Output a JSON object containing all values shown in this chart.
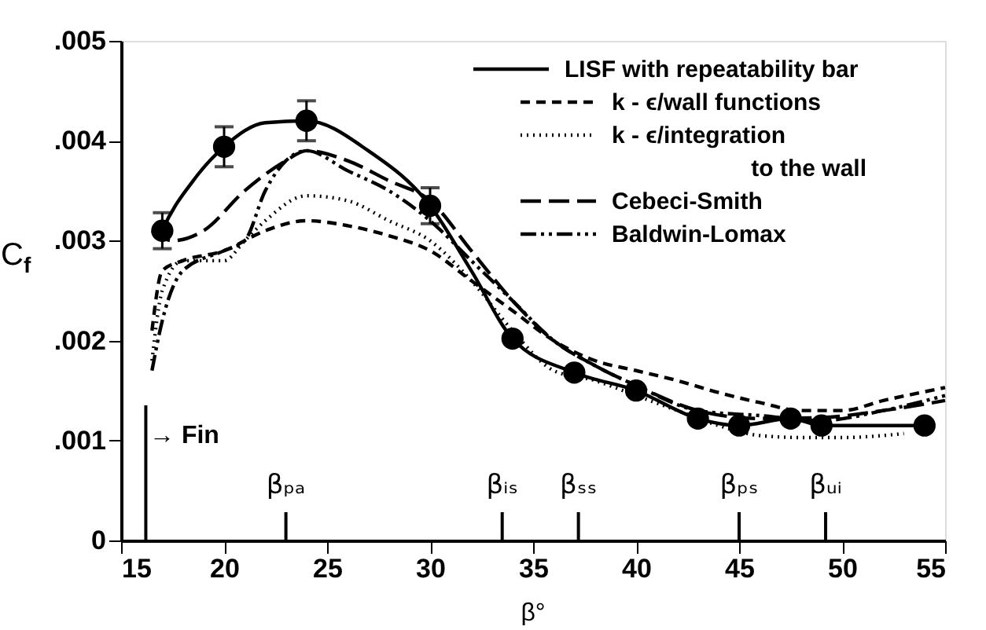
{
  "chart_data": {
    "type": "line",
    "xlabel": "β°",
    "ylabel": "C$_{f}$",
    "xlim": [
      15,
      55
    ],
    "xticks": [
      15,
      20,
      25,
      30,
      35,
      40,
      45,
      50,
      55
    ],
    "ylim": [
      0,
      0.005
    ],
    "yticks": [
      {
        "value": 0,
        "label": "0"
      },
      {
        "value": 0.001,
        "label": ".001"
      },
      {
        "value": 0.002,
        "label": ".002"
      },
      {
        "value": 0.003,
        "label": ".003"
      },
      {
        "value": 0.004,
        "label": ".004"
      },
      {
        "value": 0.005,
        "label": ".005"
      }
    ],
    "grid": false,
    "legend": "top right",
    "series": [
      {
        "name": "LISF with repeatability bar",
        "color": "#000000",
        "line_style": "solid",
        "x": [
          16.8,
          17,
          18.5,
          20,
          22,
          24,
          27,
          30,
          32,
          34,
          37,
          40,
          43,
          45,
          47.5,
          49,
          52,
          54
        ],
        "values": [
          0.003,
          0.0031,
          0.0036,
          0.00394,
          0.00418,
          0.0042,
          0.0039,
          0.00335,
          0.0027,
          0.00202,
          0.00168,
          0.0015,
          0.00122,
          0.00115,
          0.00122,
          0.00115,
          0.00115,
          0.00115
        ]
      },
      {
        "type": "scatter",
        "color": "#000000",
        "marker": "circle",
        "x": [
          17,
          20,
          24,
          30,
          34,
          37,
          40,
          43,
          45,
          47.5,
          49,
          54
        ],
        "values": [
          0.0031,
          0.00394,
          0.0042,
          0.00335,
          0.00202,
          0.00168,
          0.0015,
          0.00122,
          0.00115,
          0.00122,
          0.00115,
          0.00115
        ],
        "errors": [
          0.00018,
          0.0002,
          0.0002,
          0.00018,
          null,
          null,
          null,
          null,
          null,
          null,
          null,
          null
        ]
      },
      {
        "name": "k - ϵ/wall functions",
        "color": "#000000",
        "line_style": "dashed",
        "x": [
          16.5,
          17,
          18,
          20,
          22,
          24,
          26,
          28,
          30,
          32,
          34,
          36,
          38,
          40,
          42,
          44,
          46,
          48,
          50,
          52,
          55
        ],
        "values": [
          0.0021,
          0.0027,
          0.0028,
          0.0029,
          0.0031,
          0.0032,
          0.00315,
          0.00305,
          0.0029,
          0.0026,
          0.0023,
          0.002,
          0.0018,
          0.0017,
          0.0016,
          0.00148,
          0.00138,
          0.0013,
          0.0013,
          0.0014,
          0.00153
        ]
      },
      {
        "name": "k - ϵ/integration to the wall",
        "color": "#000000",
        "line_style": "dotted",
        "x": [
          16.5,
          17,
          18,
          20,
          21,
          22,
          24,
          26,
          28,
          30,
          32,
          34,
          36,
          38,
          40,
          42,
          44,
          46,
          48,
          50,
          52,
          53
        ],
        "values": [
          0.0018,
          0.0025,
          0.0028,
          0.0028,
          0.003,
          0.0032,
          0.00345,
          0.0034,
          0.0032,
          0.003,
          0.0026,
          0.0021,
          0.0017,
          0.0016,
          0.00145,
          0.0013,
          0.00115,
          0.00105,
          0.00103,
          0.00103,
          0.00105,
          0.00107
        ]
      },
      {
        "name": "Cebeci-Smith",
        "color": "#000000",
        "line_style": "longdash",
        "x": [
          16.5,
          17.5,
          19,
          21,
          23,
          24,
          26,
          28,
          30,
          32,
          34,
          36,
          38,
          40,
          43,
          46,
          49,
          52,
          55
        ],
        "values": [
          0.0031,
          0.003,
          0.0031,
          0.0035,
          0.0038,
          0.0039,
          0.0038,
          0.0036,
          0.0034,
          0.0029,
          0.0024,
          0.002,
          0.00175,
          0.00155,
          0.0013,
          0.00122,
          0.00123,
          0.0013,
          0.0014
        ]
      },
      {
        "name": "Baldwin-Lomax",
        "color": "#000000",
        "line_style": "dashdot",
        "x": [
          16.5,
          17,
          18,
          20,
          21,
          22,
          23,
          24,
          26,
          28,
          30,
          32,
          34,
          36,
          38,
          40,
          43,
          46,
          49,
          52,
          55
        ],
        "values": [
          0.0017,
          0.0022,
          0.0027,
          0.0029,
          0.003,
          0.0035,
          0.0038,
          0.0039,
          0.0037,
          0.0035,
          0.0032,
          0.0028,
          0.0024,
          0.002,
          0.00175,
          0.00155,
          0.0013,
          0.00125,
          0.0012,
          0.0013,
          0.00145
        ]
      }
    ],
    "ref_lines": [
      {
        "axis": "x",
        "value": 16.2
      },
      {
        "axis": "x",
        "value": 23,
        "label": "βₚₐ"
      },
      {
        "axis": "x",
        "value": 33.5,
        "label": "βᵢₛ"
      },
      {
        "axis": "x",
        "value": 37.2,
        "label": "βₛₛ"
      },
      {
        "axis": "x",
        "value": 45,
        "label": "βₚₛ"
      },
      {
        "axis": "x",
        "value": 49.2,
        "label": "βᵤᵢ"
      }
    ],
    "annotations": [
      "→ Fin"
    ]
  }
}
